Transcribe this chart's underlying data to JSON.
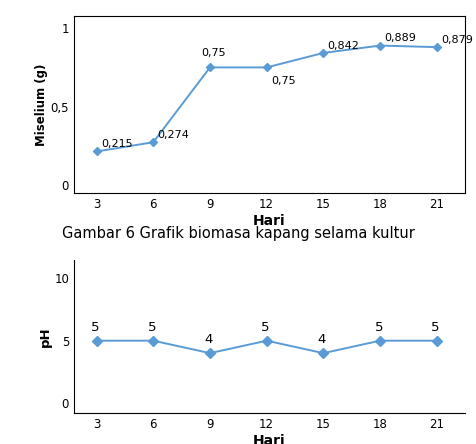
{
  "chart1": {
    "x": [
      3,
      6,
      9,
      12,
      15,
      18,
      21
    ],
    "y": [
      0.215,
      0.274,
      0.75,
      0.75,
      0.842,
      0.889,
      0.879
    ],
    "label_texts": [
      "0,215",
      "0,274",
      "0,75",
      "0,75",
      "0,842",
      "0,889",
      "0,879"
    ],
    "label_dx": [
      3,
      3,
      -6,
      3,
      3,
      3,
      3
    ],
    "label_dy": [
      3,
      3,
      8,
      -12,
      3,
      3,
      3
    ],
    "ylabel": "Miselium (g)",
    "xlabel": "Hari",
    "yticks": [
      0,
      0.5,
      1
    ],
    "ytick_labels": [
      "0",
      "0,5",
      "1"
    ],
    "ylim": [
      -0.05,
      1.08
    ],
    "xlim": [
      1.8,
      22.5
    ],
    "line_color": "#5b9bd5",
    "marker_color": "#5b9bd5",
    "has_border": true
  },
  "chart2": {
    "x": [
      3,
      6,
      9,
      12,
      15,
      18,
      21
    ],
    "y": [
      5,
      5,
      4,
      5,
      4,
      5,
      5
    ],
    "label_texts": [
      "5",
      "5",
      "4",
      "5",
      "4",
      "5",
      "5"
    ],
    "label_dx": [
      -4,
      -4,
      -4,
      -4,
      -4,
      -4,
      -4
    ],
    "label_dy": [
      7,
      7,
      7,
      7,
      7,
      7,
      7
    ],
    "ylabel": "pH",
    "xlabel": "Hari",
    "yticks": [
      0,
      5,
      10
    ],
    "ytick_labels": [
      "0",
      "5",
      "10"
    ],
    "ylim": [
      -0.8,
      11.5
    ],
    "xlim": [
      1.8,
      22.5
    ],
    "line_color": "#5b9bd5",
    "marker_color": "#5b9bd5",
    "has_border": false
  },
  "caption": "Gambar 6 Grafik biomasa kapang selama kultur",
  "caption_fontsize": 10.5,
  "bg_color": "#ffffff"
}
